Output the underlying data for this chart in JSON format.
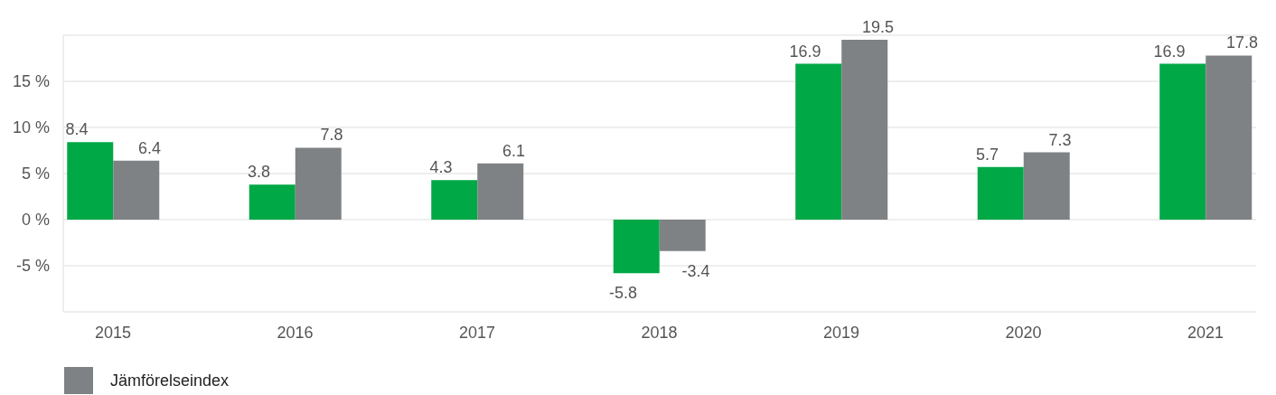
{
  "chart_data": {
    "type": "bar",
    "categories": [
      "2015",
      "2016",
      "2017",
      "2018",
      "2019",
      "2020",
      "2021"
    ],
    "series": [
      {
        "color": "#00a846",
        "values": [
          8.4,
          3.8,
          4.3,
          -5.8,
          16.9,
          5.7,
          16.9
        ]
      },
      {
        "name": "Jämförelseindex",
        "color": "#7f8285",
        "values": [
          6.4,
          7.8,
          6.1,
          -3.4,
          19.5,
          7.3,
          17.8
        ]
      }
    ],
    "ylim": [
      -10,
      20
    ],
    "yticks": [
      {
        "value": -5,
        "label": "-5 %"
      },
      {
        "value": 0,
        "label": "0 %"
      },
      {
        "value": 5,
        "label": "5 %"
      },
      {
        "value": 10,
        "label": "10 %"
      },
      {
        "value": 15,
        "label": "15 %"
      }
    ],
    "grid": "y",
    "legend": "bottom",
    "data_labels": true
  }
}
